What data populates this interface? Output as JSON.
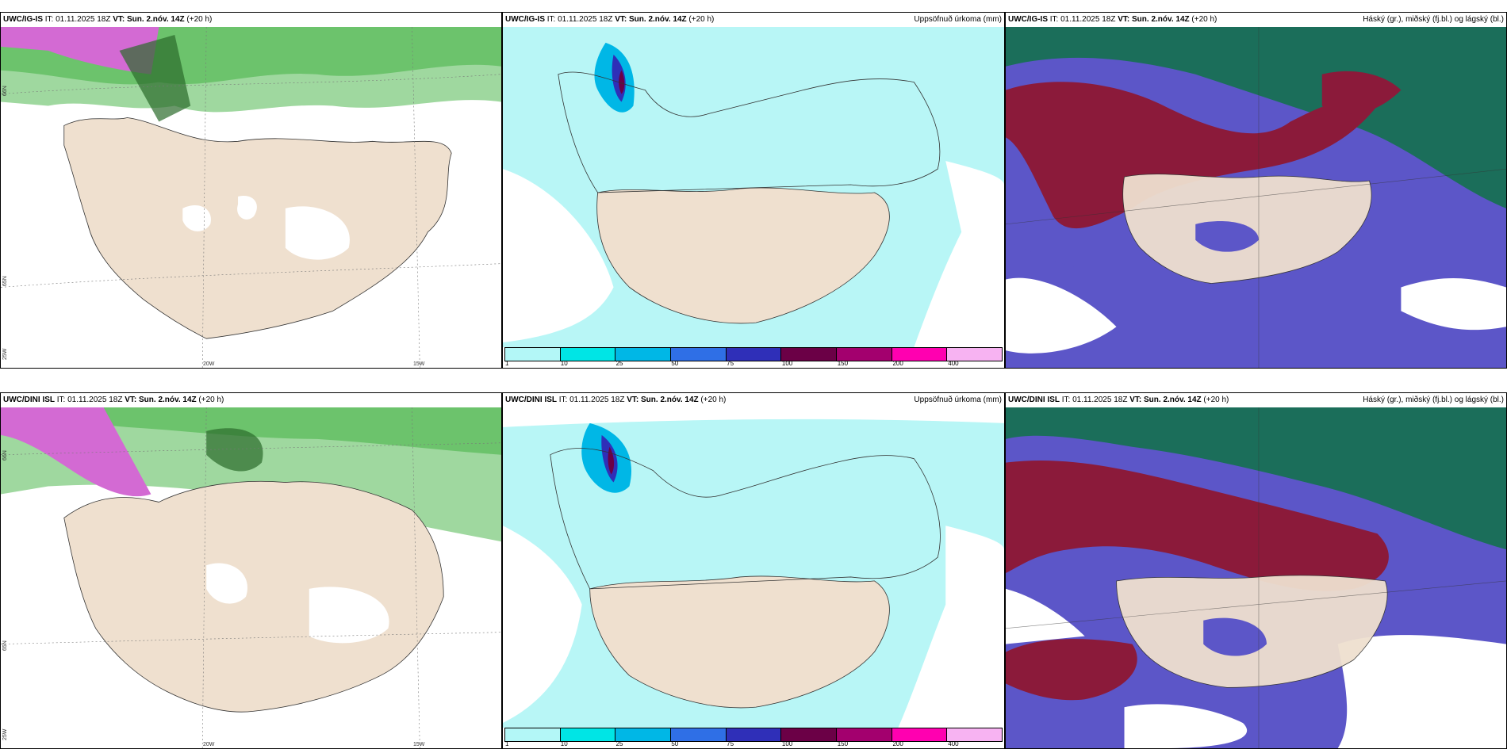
{
  "rows": [
    {
      "model": "UWC/IG-IS",
      "init_label": "IT:",
      "init": "01.11.2025 18Z",
      "valid_label": "VT:",
      "valid": "Sun. 2.nóv. 14Z",
      "lead": "(+20 h)"
    },
    {
      "model": "UWC/DINI ISL",
      "init_label": "IT:",
      "init": "01.11.2025 18Z",
      "valid_label": "VT:",
      "valid": "Sun. 2.nóv. 14Z",
      "lead": "(+20 h)"
    }
  ],
  "precip_title": "Uppsöfnuð úrkoma (mm)",
  "cloud_title": "Háský (gr.), miðský (fj.bl.) og lágský (bl.)",
  "colorbar": {
    "colors": [
      "#b3f7f7",
      "#00e5e5",
      "#00b7e6",
      "#2f6fe6",
      "#2f2fb8",
      "#6b0046",
      "#a3006e",
      "#ff00b0",
      "#f7b3f2"
    ],
    "labels": [
      "1",
      "10",
      "25",
      "50",
      "75",
      "100",
      "150",
      "200",
      "400"
    ]
  },
  "wind_axis": {
    "lat_top": "66N",
    "lat_mid": "65N",
    "lon_left": "25W",
    "lon_mid": "20W",
    "lon_right": "15W"
  },
  "colors": {
    "land": "#efe0cf",
    "sea": "#ffffff",
    "precip_light": "#b8f6f6",
    "cloud_high": "#1b6e5a",
    "cloud_mid": "#8b1a3a",
    "cloud_low": "#5c56c8"
  }
}
